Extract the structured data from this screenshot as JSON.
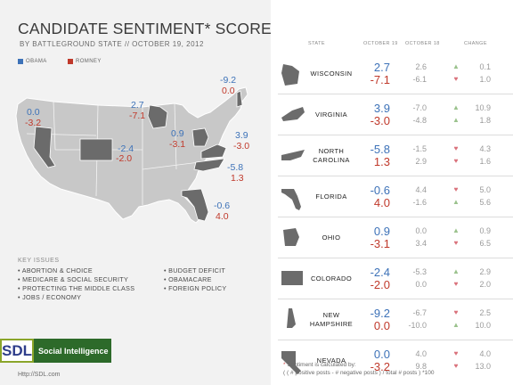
{
  "header": {
    "title": "CANDIDATE SENTIMENT* SCORE",
    "subtitle": "BY BATTLEGROUND STATE  // OCTOBER 19, 2012"
  },
  "legend": {
    "obama": {
      "label": "OBAMA",
      "color": "#3d72b8"
    },
    "romney": {
      "label": "ROMNEY",
      "color": "#c0392b"
    }
  },
  "map_labels": [
    {
      "state": "Nevada",
      "obama": "0.0",
      "romney": "-3.2"
    },
    {
      "state": "Colorado",
      "obama": "-2.4",
      "romney": "-2.0"
    },
    {
      "state": "Wisconsin",
      "obama": "2.7",
      "romney": "-7.1"
    },
    {
      "state": "Ohio",
      "obama": "0.9",
      "romney": "-3.1"
    },
    {
      "state": "New Hampshire",
      "obama": "-9.2",
      "romney": "0.0"
    },
    {
      "state": "Virginia",
      "obama": "3.9",
      "romney": "-3.0"
    },
    {
      "state": "North Carolina",
      "obama": "-5.8",
      "romney": "1.3"
    },
    {
      "state": "Florida",
      "obama": "-0.6",
      "romney": "4.0"
    }
  ],
  "key_issues": {
    "title": "KEY ISSUES",
    "left": [
      "ABORTION & CHOICE",
      "MEDICARE & SOCIAL SECURITY",
      "PROTECTING THE MIDDLE CLASS",
      "JOBS / ECONOMY"
    ],
    "right": [
      "BUDGET DEFICIT",
      "OBAMACARE",
      "FOREIGN POLICY"
    ]
  },
  "logo": {
    "mark": "SDL",
    "text": "Social Intelligence"
  },
  "url": "Http://SDL.com",
  "table": {
    "headers": {
      "state": "STATE",
      "current": "OCTOBER 19",
      "previous": "OCTOBER 18",
      "change": "CHANGE"
    },
    "rows": [
      {
        "name": "WISCONSIN",
        "shape": "wisconsin-shape-icon",
        "obama": "2.7",
        "romney": "-7.1",
        "obama_prev": "2.6",
        "romney_prev": "-6.1",
        "obama_dir": "up",
        "romney_dir": "down",
        "obama_chg": "0.1",
        "romney_chg": "1.0"
      },
      {
        "name": "VIRGINIA",
        "shape": "virginia-shape-icon",
        "obama": "3.9",
        "romney": "-3.0",
        "obama_prev": "-7.0",
        "romney_prev": "-4.8",
        "obama_dir": "up",
        "romney_dir": "up",
        "obama_chg": "10.9",
        "romney_chg": "1.8"
      },
      {
        "name": "NORTH\nCAROLINA",
        "shape": "north-carolina-shape-icon",
        "obama": "-5.8",
        "romney": "1.3",
        "obama_prev": "-1.5",
        "romney_prev": "2.9",
        "obama_dir": "down",
        "romney_dir": "down",
        "obama_chg": "4.3",
        "romney_chg": "1.6"
      },
      {
        "name": "FLORIDA",
        "shape": "florida-shape-icon",
        "obama": "-0.6",
        "romney": "4.0",
        "obama_prev": "4.4",
        "romney_prev": "-1.6",
        "obama_dir": "down",
        "romney_dir": "up",
        "obama_chg": "5.0",
        "romney_chg": "5.6"
      },
      {
        "name": "OHIO",
        "shape": "ohio-shape-icon",
        "obama": "0.9",
        "romney": "-3.1",
        "obama_prev": "0.0",
        "romney_prev": "3.4",
        "obama_dir": "up",
        "romney_dir": "down",
        "obama_chg": "0.9",
        "romney_chg": "6.5"
      },
      {
        "name": "COLORADO",
        "shape": "colorado-shape-icon",
        "obama": "-2.4",
        "romney": "-2.0",
        "obama_prev": "-5.3",
        "romney_prev": "0.0",
        "obama_dir": "up",
        "romney_dir": "down",
        "obama_chg": "2.9",
        "romney_chg": "2.0"
      },
      {
        "name": "NEW\nHAMPSHIRE",
        "shape": "new-hampshire-shape-icon",
        "obama": "-9.2",
        "romney": "0.0",
        "obama_prev": "-6.7",
        "romney_prev": "-10.0",
        "obama_dir": "down",
        "romney_dir": "up",
        "obama_chg": "2.5",
        "romney_chg": "10.0"
      },
      {
        "name": "NEVADA",
        "shape": "nevada-shape-icon",
        "obama": "0.0",
        "romney": "-3.2",
        "obama_prev": "4.0",
        "romney_prev": "9.8",
        "obama_dir": "down",
        "romney_dir": "down",
        "obama_chg": "4.0",
        "romney_chg": "13.0"
      }
    ]
  },
  "footnote": {
    "star": "*",
    "term": " Sentiment",
    "line1": " is calculated by:",
    "line2": "( ( # positive posts - # negative posts ) / total # posts ) *100"
  }
}
